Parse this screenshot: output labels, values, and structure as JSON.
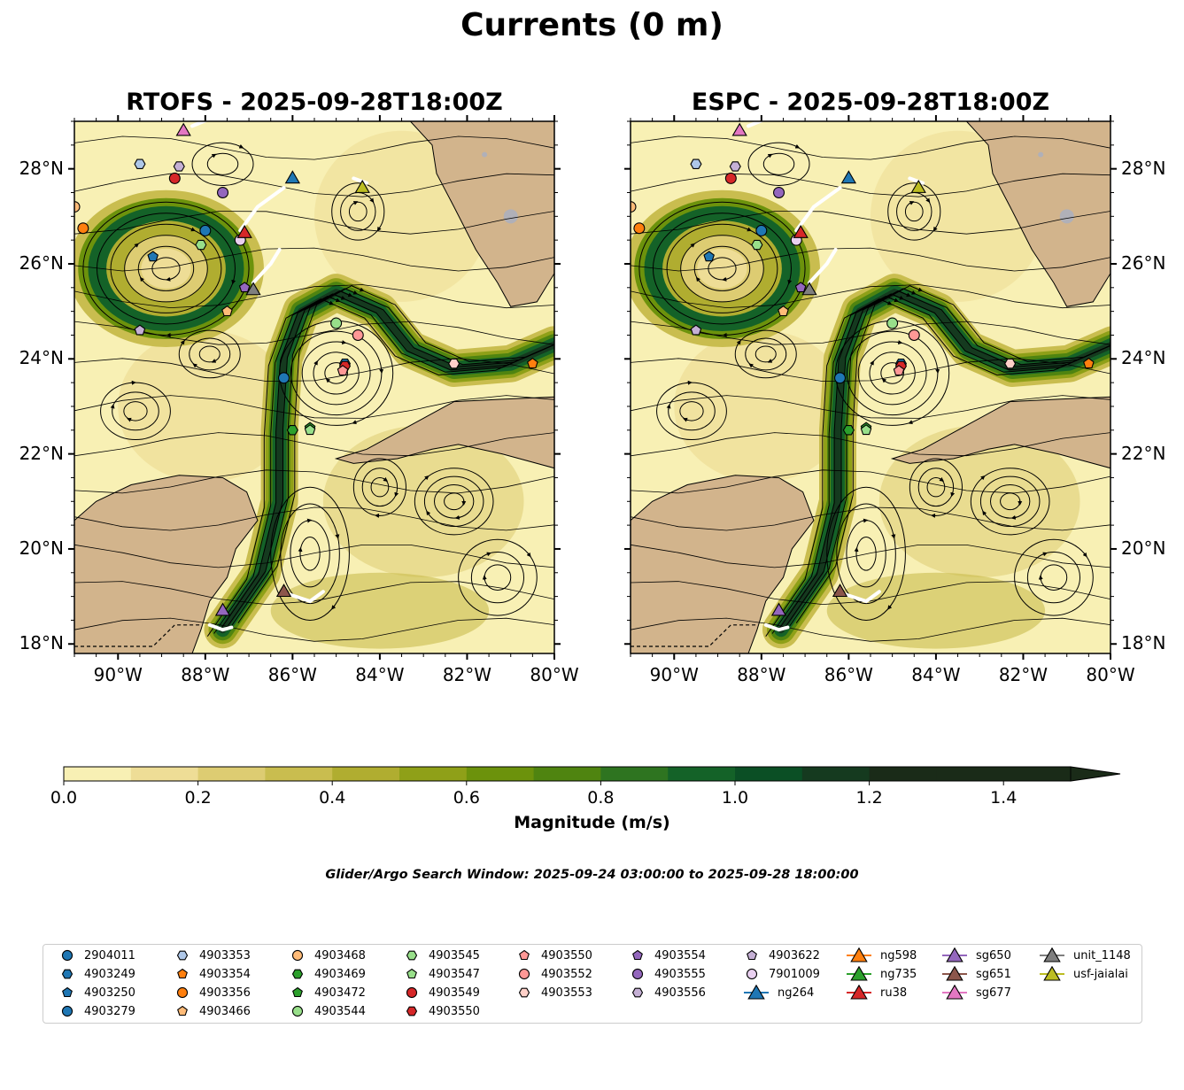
{
  "title": "Currents (0 m)",
  "panels": [
    {
      "title": "RTOFS - 2025-09-28T18:00Z"
    },
    {
      "title": "ESPC - 2025-09-28T18:00Z"
    }
  ],
  "colors": {
    "land": "#d2b48c",
    "coast_water": "#a6c8e6",
    "cmap": [
      "#f8f0b4",
      "#eedd96",
      "#ddcc72",
      "#c9bd4f",
      "#b0ad30",
      "#8fa018",
      "#6c920c",
      "#4f8410",
      "#2e7420",
      "#146228",
      "#0b4f25",
      "#153a1f",
      "#1a2b18"
    ],
    "contour_accent": "#000000"
  },
  "chart_data": {
    "type": "heatmap",
    "variable": "surface current magnitude with streamlines",
    "lon_range": [
      -91,
      -80
    ],
    "lat_range": [
      17.8,
      29
    ],
    "x_ticks": [
      "90°W",
      "88°W",
      "86°W",
      "84°W",
      "82°W",
      "80°W"
    ],
    "y_ticks": [
      "18°N",
      "20°N",
      "22°N",
      "24°N",
      "26°N",
      "28°N"
    ],
    "colorbar": {
      "label": "Magnitude (m/s)",
      "min": 0.0,
      "max": 1.5,
      "step": 0.1,
      "extend": "max",
      "ticks": [
        "0.0",
        "0.2",
        "0.4",
        "0.6",
        "0.8",
        "1.0",
        "1.2",
        "1.4"
      ]
    },
    "series": [
      {
        "name": "2904011",
        "marker": "circle",
        "color": "#1f77b4",
        "lon": -88.0,
        "lat": 26.7
      },
      {
        "name": "4903249",
        "marker": "hexagon",
        "color": "#1f77b4",
        "lon": -84.8,
        "lat": 23.9
      },
      {
        "name": "4903250",
        "marker": "pentagon",
        "color": "#1f77b4",
        "lon": -89.2,
        "lat": 26.15
      },
      {
        "name": "4903279",
        "marker": "circle",
        "color": "#1f77b4",
        "lon": -86.2,
        "lat": 23.6
      },
      {
        "name": "4903353",
        "marker": "hexagon",
        "color": "#aec7e8",
        "lon": -89.5,
        "lat": 28.1
      },
      {
        "name": "4903354",
        "marker": "pentagon",
        "color": "#ff7f0e",
        "lon": -80.5,
        "lat": 23.9
      },
      {
        "name": "4903356",
        "marker": "circle",
        "color": "#ff7f0e",
        "lon": -90.8,
        "lat": 26.75
      },
      {
        "name": "4903466",
        "marker": "pentagon",
        "color": "#ffbb78",
        "lon": -87.5,
        "lat": 25.0
      },
      {
        "name": "4903468",
        "marker": "circle",
        "color": "#ffbb78",
        "lon": -91.0,
        "lat": 27.2
      },
      {
        "name": "4903469",
        "marker": "hexagon",
        "color": "#2ca02c",
        "lon": -86.0,
        "lat": 22.5
      },
      {
        "name": "4903472",
        "marker": "pentagon",
        "color": "#2ca02c",
        "lon": -85.6,
        "lat": 22.55
      },
      {
        "name": "4903544",
        "marker": "circle",
        "color": "#98df8a",
        "lon": -85.0,
        "lat": 24.75
      },
      {
        "name": "4903545",
        "marker": "hexagon",
        "color": "#98df8a",
        "lon": -88.1,
        "lat": 26.4
      },
      {
        "name": "4903547",
        "marker": "pentagon",
        "color": "#98df8a",
        "lon": -85.6,
        "lat": 22.5
      },
      {
        "name": "4903549",
        "marker": "circle",
        "color": "#d62728",
        "lon": -88.7,
        "lat": 27.8
      },
      {
        "name": "4903550",
        "marker": "hexagon",
        "color": "#d62728",
        "lon": -84.8,
        "lat": 23.85
      },
      {
        "name": "4903550",
        "marker": "pentagon",
        "color": "#ff9896",
        "lon": -84.85,
        "lat": 23.75
      },
      {
        "name": "4903552",
        "marker": "circle",
        "color": "#ff9896",
        "lon": -84.5,
        "lat": 24.5
      },
      {
        "name": "4903553",
        "marker": "hexagon",
        "color": "#ffd0c8",
        "lon": -82.3,
        "lat": 23.9
      },
      {
        "name": "4903554",
        "marker": "pentagon",
        "color": "#9467bd",
        "lon": -87.1,
        "lat": 25.5
      },
      {
        "name": "4903555",
        "marker": "circle",
        "color": "#9467bd",
        "lon": -87.6,
        "lat": 27.5
      },
      {
        "name": "4903556",
        "marker": "hexagon",
        "color": "#c5b0d5",
        "lon": -88.6,
        "lat": 28.05
      },
      {
        "name": "4903622",
        "marker": "pentagon",
        "color": "#c5b0d5",
        "lon": -89.5,
        "lat": 24.6
      },
      {
        "name": "7901009",
        "marker": "circle",
        "color": "#e9d0f0",
        "lon": -87.2,
        "lat": 26.5
      },
      {
        "name": "ng264",
        "marker": "triangle",
        "color": "#1f77b4",
        "lon": -86.0,
        "lat": 27.8
      },
      {
        "name": "ng598",
        "marker": "triangle",
        "color": "#ff7f0e",
        "lon": null,
        "lat": null
      },
      {
        "name": "ng735",
        "marker": "triangle",
        "color": "#2ca02c",
        "lon": null,
        "lat": null
      },
      {
        "name": "ru38",
        "marker": "triangle",
        "color": "#d62728",
        "lon": -87.1,
        "lat": 26.65
      },
      {
        "name": "sg650",
        "marker": "triangle",
        "color": "#9467bd",
        "lon": -87.6,
        "lat": 18.7
      },
      {
        "name": "sg651",
        "marker": "triangle",
        "color": "#8c564b",
        "lon": -86.2,
        "lat": 19.1
      },
      {
        "name": "sg677",
        "marker": "triangle",
        "color": "#e377c2",
        "lon": -88.5,
        "lat": 28.8
      },
      {
        "name": "unit_1148",
        "marker": "triangle",
        "color": "#7f7f7f",
        "lon": -86.9,
        "lat": 25.45
      },
      {
        "name": "usf-jaialai",
        "marker": "triangle",
        "color": "#bcbd22",
        "lon": -84.4,
        "lat": 27.6
      }
    ]
  },
  "search_window": "Glider/Argo Search Window: 2025-09-24 03:00:00 to 2025-09-28 18:00:00"
}
